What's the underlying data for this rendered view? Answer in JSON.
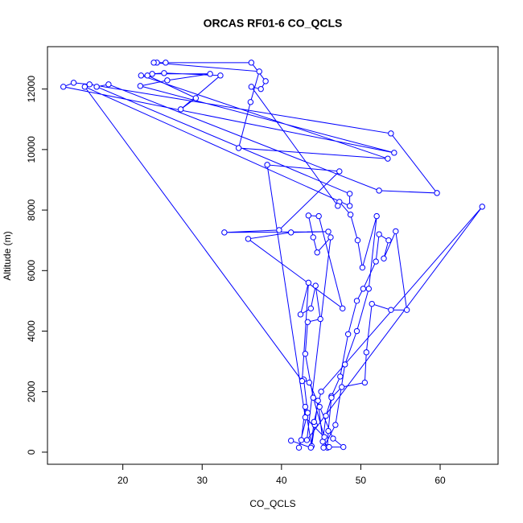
{
  "chart_data": {
    "type": "line",
    "title": "ORCAS RF01-6 CO_QCLS",
    "x_label": "CO_QCLS",
    "y_label": "Altitude (m)",
    "color": "#0000ff",
    "markers": true,
    "x": [
      45.8,
      45.9,
      46.3,
      47.4,
      48.4,
      49.5,
      50.3,
      51.9,
      52.3,
      53.5,
      52.9,
      54.4,
      55.8,
      53.8,
      51.4,
      50.7,
      50.5,
      47.6,
      46.3,
      45.6,
      45.2,
      46.0,
      47.8,
      46.5,
      44.8,
      43.5,
      42.8,
      43.3,
      42.2,
      42.5,
      43.0,
      43.8,
      44.2,
      44.6,
      45.3,
      46.8,
      48.0,
      49.5,
      51.0,
      52.0,
      50.2,
      49.6,
      48.7,
      47.3,
      47.1,
      36.2,
      37.4,
      38.0,
      36.2,
      25.4,
      24.3,
      23.9,
      37.2,
      36.1,
      34.6,
      53.4,
      22.3,
      23.1,
      29.2,
      27.3,
      32.3,
      25.2,
      23.7,
      31.0,
      25.6,
      22.2,
      54.2,
      12.5,
      13.8,
      15.8,
      53.8,
      59.6,
      52.3,
      18.2,
      16.7,
      48.6,
      48.6,
      15.2,
      42.6,
      43.4,
      42.4,
      43.7,
      44.3,
      44.9,
      43.3,
      43.0,
      44.0,
      45.4,
      43.0,
      38.2,
      47.3,
      39.7,
      32.8,
      45.9,
      41.2,
      35.8,
      47.7,
      44.7,
      43.4,
      44.0,
      44.5,
      46.2,
      43.2,
      65.3,
      45.0,
      44.1,
      43.7,
      41.2
    ],
    "y": [
      150,
      700,
      1850,
      2500,
      3900,
      5000,
      5400,
      6300,
      7200,
      7000,
      6400,
      7300,
      4700,
      4700,
      4900,
      3300,
      2300,
      2150,
      1800,
      1200,
      350,
      170,
      170,
      450,
      1500,
      2300,
      2400,
      1300,
      150,
      400,
      1500,
      200,
      900,
      1700,
      150,
      900,
      2900,
      4000,
      5400,
      7800,
      6100,
      7000,
      7850,
      8270,
      8140,
      12075,
      12000,
      12260,
      12872,
      12872,
      12872,
      12872,
      12580,
      11570,
      10050,
      9700,
      12447,
      12447,
      11700,
      11330,
      12447,
      12527,
      12500,
      12500,
      12287,
      12101,
      9894,
      12075,
      12207,
      12154,
      10532,
      8564,
      8644,
      12154,
      12075,
      8540,
      8138,
      12075,
      2350,
      5600,
      4550,
      4750,
      5500,
      4400,
      4300,
      3250,
      1800,
      500,
      1150,
      9495,
      9280,
      7340,
      7261,
      7287,
      7261,
      7048,
      4750,
      7800,
      7820,
      7100,
      6600,
      7100,
      400,
      8112,
      2000,
      1000,
      150,
      380
    ],
    "xlim": [
      10.5,
      67.3
    ],
    "ylim": [
      -400,
      13400
    ],
    "xticks": [
      20,
      30,
      40,
      50,
      60
    ],
    "yticks": [
      0,
      2000,
      4000,
      6000,
      8000,
      10000,
      12000
    ]
  }
}
